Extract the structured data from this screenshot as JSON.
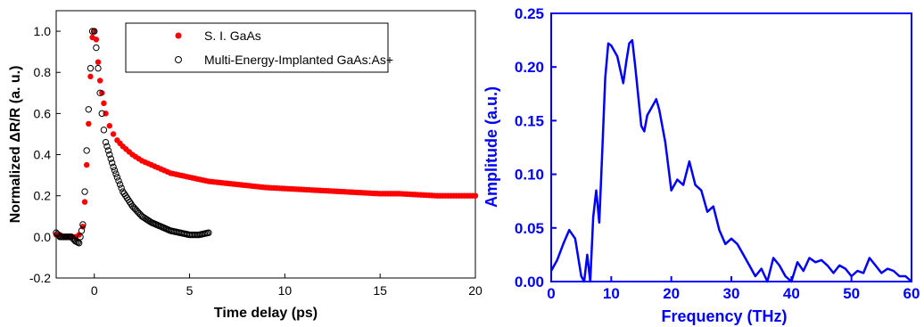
{
  "chart_data": [
    {
      "type": "scatter",
      "title": "",
      "xlabel": "Time delay (ps)",
      "ylabel": "Normalized ΔR/R (a. u.)",
      "xlim": [
        -2,
        20
      ],
      "ylim": [
        -0.2,
        1.1
      ],
      "xticks": [
        0,
        5,
        10,
        15,
        20
      ],
      "yticks": [
        -0.2,
        0.0,
        0.2,
        0.4,
        0.6,
        0.8,
        1.0
      ],
      "xtick_labels": [
        "0",
        "5",
        "10",
        "15",
        "20"
      ],
      "ytick_labels": [
        "-0.2",
        "0.0",
        "0.2",
        "0.4",
        "0.6",
        "0.8",
        "1.0"
      ],
      "legend_position": "top-right",
      "grid": false,
      "colors": {
        "series1": "#ff0000",
        "series2": "#000000",
        "axes": "#000000"
      },
      "series": [
        {
          "name": "S. I. GaAs",
          "marker": "filled-circle",
          "x": [
            -2.0,
            -1.8,
            -1.6,
            -1.4,
            -1.2,
            -1.0,
            -0.8,
            -0.6,
            -0.5,
            -0.4,
            -0.3,
            -0.2,
            -0.1,
            0.0,
            0.1,
            0.2,
            0.3,
            0.4,
            0.5,
            0.6,
            0.8,
            1.0,
            1.2,
            1.5,
            2.0,
            2.5,
            3.0,
            3.5,
            4.0,
            5.0,
            6.0,
            7.0,
            8.0,
            9.0,
            10.0,
            11.0,
            12.0,
            13.0,
            14.0,
            15.0,
            16.0,
            17.0,
            18.0,
            19.0,
            20.0
          ],
          "y": [
            0.01,
            0.01,
            0.0,
            0.0,
            0.0,
            0.0,
            0.01,
            0.05,
            0.17,
            0.35,
            0.55,
            0.78,
            0.97,
            1.0,
            0.96,
            0.85,
            0.76,
            0.7,
            0.65,
            0.6,
            0.54,
            0.5,
            0.47,
            0.44,
            0.4,
            0.37,
            0.35,
            0.33,
            0.31,
            0.29,
            0.27,
            0.26,
            0.25,
            0.24,
            0.235,
            0.23,
            0.225,
            0.22,
            0.215,
            0.21,
            0.21,
            0.205,
            0.2,
            0.2,
            0.2
          ]
        },
        {
          "name": "Multi-Energy-Implanted GaAs:As+",
          "marker": "open-circle",
          "x": [
            -2.0,
            -1.8,
            -1.6,
            -1.4,
            -1.2,
            -1.0,
            -0.8,
            -0.6,
            -0.5,
            -0.4,
            -0.3,
            -0.2,
            -0.1,
            0.0,
            0.1,
            0.2,
            0.3,
            0.4,
            0.5,
            0.6,
            0.8,
            1.0,
            1.2,
            1.5,
            2.0,
            2.5,
            3.0,
            3.5,
            4.0,
            4.5,
            5.0,
            5.5,
            6.0
          ],
          "y": [
            0.02,
            0.0,
            0.0,
            0.0,
            0.0,
            -0.02,
            -0.03,
            0.06,
            0.22,
            0.42,
            0.62,
            0.82,
            1.0,
            1.0,
            0.92,
            0.82,
            0.7,
            0.6,
            0.52,
            0.46,
            0.4,
            0.34,
            0.29,
            0.22,
            0.15,
            0.1,
            0.07,
            0.05,
            0.03,
            0.02,
            0.01,
            0.01,
            0.02
          ]
        }
      ]
    },
    {
      "type": "line",
      "title": "",
      "xlabel": "Frequency (THz)",
      "ylabel": "Amplitude (a.u.)",
      "xlim": [
        0,
        60
      ],
      "ylim": [
        0,
        0.25
      ],
      "xticks": [
        0,
        10,
        20,
        30,
        40,
        50,
        60
      ],
      "yticks": [
        0.0,
        0.05,
        0.1,
        0.15,
        0.2,
        0.25
      ],
      "xtick_labels": [
        "0",
        "10",
        "20",
        "30",
        "40",
        "50",
        "60"
      ],
      "ytick_labels": [
        "0.00",
        "0.05",
        "0.10",
        "0.15",
        "0.20",
        "0.25"
      ],
      "grid": false,
      "colors": {
        "line": "#0000ff",
        "axes": "#0000ff"
      },
      "series": [
        {
          "name": "",
          "x": [
            0,
            1,
            2,
            3,
            4,
            5,
            5.5,
            6,
            6.5,
            7,
            7.5,
            8,
            8.5,
            9,
            9.5,
            10,
            11,
            12,
            12.5,
            13,
            13.5,
            14,
            15,
            15.5,
            16,
            17,
            17.5,
            18,
            19,
            20,
            21,
            22,
            23,
            24,
            25,
            26,
            27,
            28,
            29,
            30,
            31,
            32,
            33,
            34,
            35,
            36,
            37,
            38,
            39,
            40,
            41,
            42,
            43,
            44,
            45,
            46,
            47,
            48,
            49,
            50,
            51,
            52,
            53,
            54,
            55,
            56,
            57,
            58,
            59,
            60
          ],
          "y": [
            0.01,
            0.02,
            0.035,
            0.048,
            0.04,
            0.005,
            0.0,
            0.025,
            0.0,
            0.06,
            0.085,
            0.055,
            0.12,
            0.19,
            0.222,
            0.22,
            0.21,
            0.185,
            0.205,
            0.222,
            0.225,
            0.2,
            0.145,
            0.14,
            0.155,
            0.165,
            0.17,
            0.16,
            0.13,
            0.085,
            0.095,
            0.09,
            0.112,
            0.09,
            0.085,
            0.065,
            0.07,
            0.048,
            0.035,
            0.04,
            0.035,
            0.025,
            0.015,
            0.005,
            0.012,
            0.0,
            0.022,
            0.015,
            0.005,
            0.0,
            0.018,
            0.01,
            0.022,
            0.018,
            0.02,
            0.015,
            0.008,
            0.015,
            0.012,
            0.005,
            0.01,
            0.008,
            0.022,
            0.015,
            0.008,
            0.012,
            0.01,
            0.005,
            0.005,
            0.0
          ]
        }
      ]
    }
  ]
}
